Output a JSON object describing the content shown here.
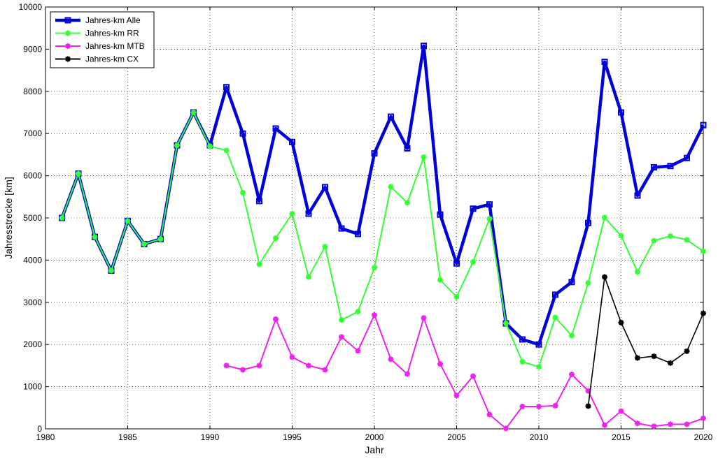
{
  "chart_data": {
    "type": "line",
    "title": "",
    "xlabel": "Jahr",
    "ylabel": "Jahresstrecke [km]",
    "xlim": [
      1980,
      2020
    ],
    "ylim": [
      0,
      10000
    ],
    "xticks": [
      1980,
      1985,
      1990,
      1995,
      2000,
      2005,
      2010,
      2015,
      2020
    ],
    "yticks": [
      0,
      1000,
      2000,
      3000,
      4000,
      5000,
      6000,
      7000,
      8000,
      9000,
      10000
    ],
    "grid": true,
    "legend_position": "top-left",
    "series": [
      {
        "name": "Jahres-km Alle",
        "color": "#0000dd",
        "marker": "square",
        "x": [
          1981,
          1982,
          1983,
          1984,
          1985,
          1986,
          1987,
          1988,
          1989,
          1990,
          1991,
          1992,
          1993,
          1994,
          1995,
          1996,
          1997,
          1998,
          1999,
          2000,
          2001,
          2002,
          2003,
          2004,
          2005,
          2006,
          2007,
          2008,
          2009,
          2010,
          2011,
          2012,
          2013,
          2014,
          2015,
          2016,
          2017,
          2018,
          2019,
          2020
        ],
        "y": [
          5000,
          6050,
          4550,
          3750,
          4930,
          4380,
          4500,
          6720,
          7500,
          6720,
          8100,
          7000,
          5400,
          7120,
          6800,
          5100,
          5730,
          4750,
          4620,
          6530,
          7400,
          6650,
          9080,
          5080,
          3920,
          5220,
          5320,
          2500,
          2120,
          2000,
          3180,
          3480,
          4880,
          8700,
          7500,
          5530,
          6200,
          6230,
          6420,
          7200
        ]
      },
      {
        "name": "Jahres-km RR",
        "color": "#33ff33",
        "marker": "star",
        "x": [
          1981,
          1982,
          1983,
          1984,
          1985,
          1986,
          1987,
          1988,
          1989,
          1990,
          1991,
          1992,
          1993,
          1994,
          1995,
          1996,
          1997,
          1998,
          1999,
          2000,
          2001,
          2002,
          2003,
          2004,
          2005,
          2006,
          2007,
          2008,
          2009,
          2010,
          2011,
          2012,
          2013,
          2014,
          2015,
          2016,
          2017,
          2018,
          2019,
          2020
        ],
        "y": [
          5000,
          6050,
          4550,
          3750,
          4930,
          4380,
          4500,
          6720,
          7500,
          6700,
          6600,
          5600,
          3900,
          4520,
          5100,
          3600,
          4320,
          2580,
          2780,
          3820,
          5740,
          5360,
          6440,
          3530,
          3130,
          3960,
          4980,
          2500,
          1590,
          1470,
          2640,
          2210,
          3460,
          5010,
          4580,
          3720,
          4460,
          4570,
          4480,
          4210
        ]
      },
      {
        "name": "Jahres-km MTB",
        "color": "#ee22ee",
        "marker": "star",
        "x": [
          1991,
          1992,
          1993,
          1994,
          1995,
          1996,
          1997,
          1998,
          1999,
          2000,
          2001,
          2002,
          2003,
          2004,
          2005,
          2006,
          2007,
          2008,
          2009,
          2010,
          2011,
          2012,
          2013,
          2014,
          2015,
          2016,
          2017,
          2018,
          2019,
          2020
        ],
        "y": [
          1500,
          1400,
          1500,
          2600,
          1700,
          1500,
          1400,
          2180,
          1850,
          2700,
          1650,
          1300,
          2630,
          1540,
          790,
          1250,
          340,
          10,
          530,
          530,
          550,
          1290,
          900,
          90,
          420,
          130,
          60,
          110,
          110,
          250
        ]
      },
      {
        "name": "Jahres-km CX",
        "color": "#000000",
        "marker": "star",
        "x": [
          2013,
          2014,
          2015,
          2016,
          2017,
          2018,
          2019,
          2020
        ],
        "y": [
          540,
          3600,
          2520,
          1680,
          1720,
          1560,
          1840,
          2740
        ]
      }
    ]
  }
}
